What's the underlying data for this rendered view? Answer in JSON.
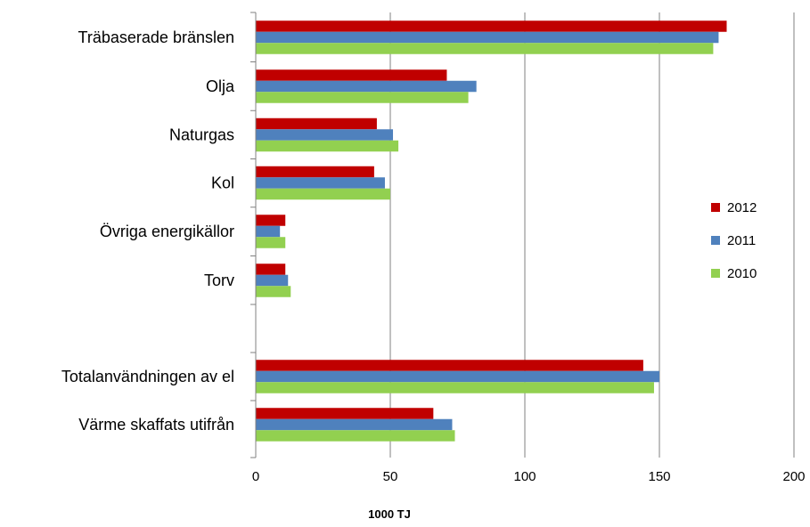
{
  "chart_data": {
    "type": "bar",
    "orientation": "horizontal",
    "categories": [
      "Träbaserade bränslen",
      "Olja",
      "Naturgas",
      "Kol",
      "Övriga energikällor",
      "Torv",
      "",
      "Totalanvändningen av el",
      "Värme skaffats utifrån"
    ],
    "series": [
      {
        "name": "2012",
        "color": "#C00000",
        "values": [
          175,
          71,
          45,
          44,
          11,
          11,
          null,
          144,
          66
        ]
      },
      {
        "name": "2011",
        "color": "#4F81BD",
        "values": [
          172,
          82,
          51,
          48,
          9,
          12,
          null,
          150,
          73
        ]
      },
      {
        "name": "2010",
        "color": "#92D050",
        "values": [
          170,
          79,
          53,
          50,
          11,
          13,
          null,
          148,
          74
        ]
      }
    ],
    "xlabel": "1000 TJ",
    "xlim": [
      0,
      200
    ],
    "xticks": [
      "0",
      "50",
      "100",
      "150",
      "200"
    ],
    "grid": "vertical",
    "legend": "right"
  }
}
